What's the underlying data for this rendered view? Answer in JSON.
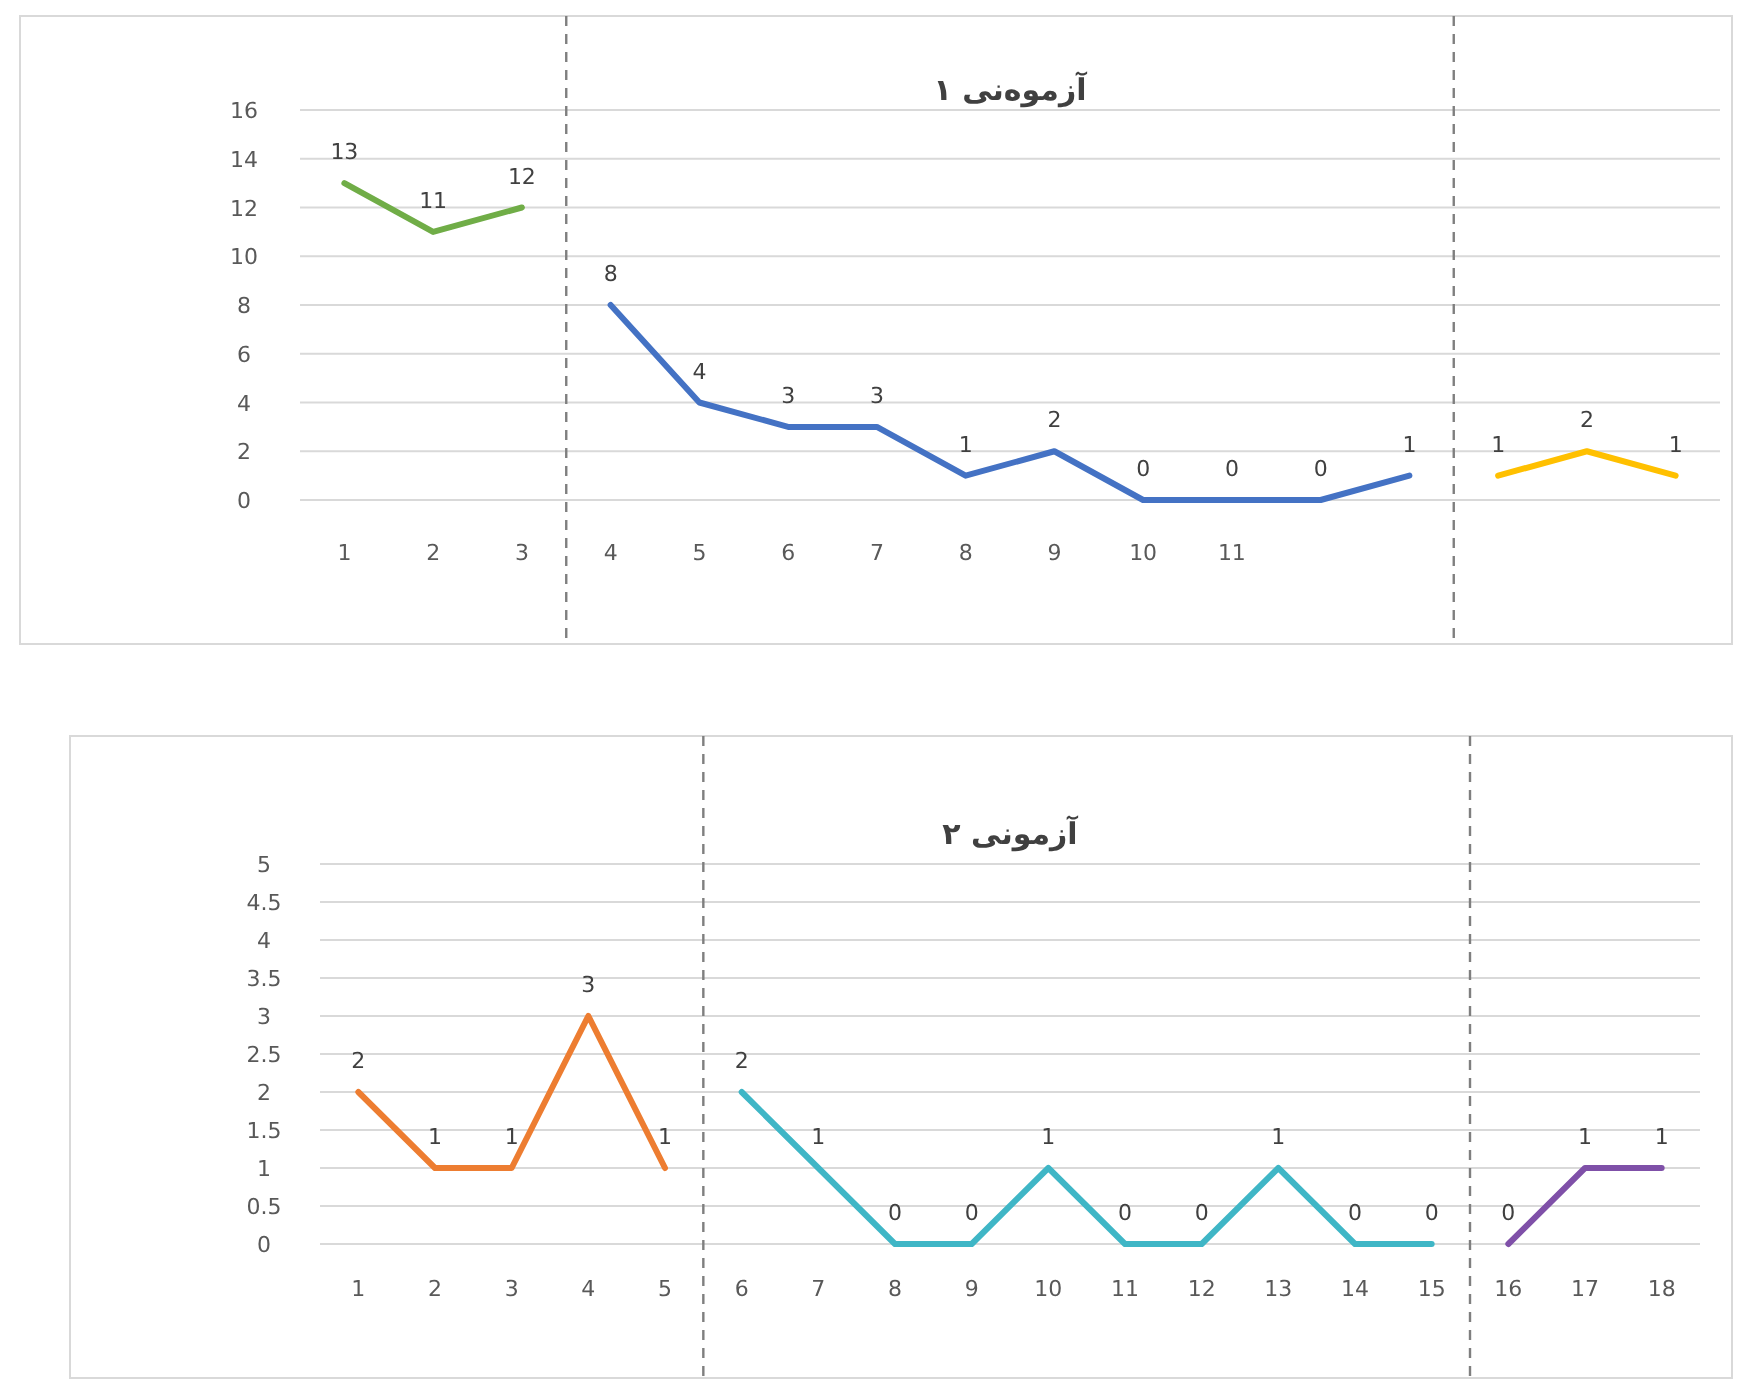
{
  "chart_data": [
    {
      "type": "line",
      "title": "آزموەنی ۱",
      "categories": [
        "1",
        "2",
        "3",
        "4",
        "5",
        "6",
        "7",
        "8",
        "9",
        "10",
        "11",
        null,
        null,
        null,
        null,
        null
      ],
      "series": [
        {
          "color": "#70ad47",
          "values": [
            13,
            11,
            12,
            null,
            null,
            null,
            null,
            null,
            null,
            null,
            null,
            null,
            null,
            null,
            null,
            null
          ]
        },
        {
          "color": "#4472c4",
          "values": [
            null,
            null,
            null,
            8,
            4,
            3,
            3,
            1,
            2,
            0,
            0,
            0,
            1,
            null,
            null,
            null
          ]
        },
        {
          "color": "#ffc000",
          "values": [
            null,
            null,
            null,
            null,
            null,
            null,
            null,
            null,
            null,
            null,
            null,
            null,
            null,
            1,
            2,
            1
          ]
        }
      ],
      "ylim": [
        0,
        16
      ],
      "yticks": [
        0,
        2,
        4,
        6,
        8,
        10,
        12,
        14,
        16
      ],
      "grid": "y",
      "data_labels": true,
      "marker": "none"
    },
    {
      "type": "line",
      "title": "آزمونی ۲",
      "categories": [
        "1",
        "2",
        "3",
        "4",
        "5",
        "6",
        "7",
        "8",
        "9",
        "10",
        "11",
        "12",
        "13",
        "14",
        "15",
        "16",
        "17",
        "18"
      ],
      "series": [
        {
          "color": "#ed7d31",
          "values": [
            2,
            1,
            1,
            3,
            1,
            null,
            null,
            null,
            null,
            null,
            null,
            null,
            null,
            null,
            null,
            null,
            null,
            null
          ]
        },
        {
          "color": "#3fb6c6",
          "values": [
            null,
            null,
            null,
            null,
            null,
            2,
            1,
            0,
            0,
            1,
            0,
            0,
            1,
            0,
            0,
            null,
            null,
            null
          ]
        },
        {
          "color": "#7f50a8",
          "values": [
            null,
            null,
            null,
            null,
            null,
            null,
            null,
            null,
            null,
            null,
            null,
            null,
            null,
            null,
            null,
            0,
            1,
            1
          ]
        }
      ],
      "ylim": [
        0,
        5
      ],
      "yticks": [
        0,
        0.5,
        1,
        1.5,
        2,
        2.5,
        3,
        3.5,
        4,
        4.5,
        5
      ],
      "grid": "y",
      "data_labels": true,
      "marker": "none"
    }
  ]
}
